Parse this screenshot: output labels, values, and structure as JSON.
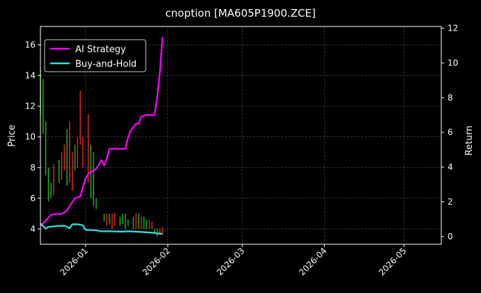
{
  "chart_data": {
    "type": "line",
    "title": "cnoption [MA605P1900.ZCE]",
    "ylabel_left": "Price",
    "ylabel_right": "Return",
    "ylim_left": [
      3.0,
      17.2
    ],
    "ylim_right": [
      -0.45,
      12.1
    ],
    "xlim": [
      "2025-12-15",
      "2026-05-15"
    ],
    "x_ticks": [
      "2026-01",
      "2026-02",
      "2026-03",
      "2026-04",
      "2026-05"
    ],
    "y_ticks_left": [
      "4",
      "6",
      "8",
      "10",
      "12",
      "14",
      "16"
    ],
    "y_ticks_right": [
      "0",
      "2",
      "4",
      "6",
      "8",
      "10",
      "12"
    ],
    "grid": true,
    "legend_position": "top-left",
    "colors": {
      "background": "#000000",
      "ai_strategy": "#ff00ff",
      "buy_and_hold": "#33dddd",
      "candle_up": "#ff2222",
      "candle_down": "#22bb22",
      "grid": "#555555"
    },
    "series": [
      {
        "name": "AI Strategy",
        "axis": "right",
        "x": [
          "2025-12-15",
          "2025-12-17",
          "2025-12-19",
          "2025-12-21",
          "2025-12-23",
          "2025-12-25",
          "2025-12-26",
          "2025-12-28",
          "2025-12-30",
          "2026-01-01",
          "2026-01-02",
          "2026-01-03",
          "2026-01-05",
          "2026-01-07",
          "2026-01-08",
          "2026-01-09",
          "2026-01-10",
          "2026-01-12",
          "2026-01-14",
          "2026-01-16",
          "2026-01-17",
          "2026-01-18",
          "2026-01-20",
          "2026-01-21",
          "2026-01-22",
          "2026-01-24",
          "2026-01-26",
          "2026-01-27",
          "2026-01-28",
          "2026-01-29",
          "2026-01-30"
        ],
        "values": [
          0.6,
          0.9,
          1.25,
          1.3,
          1.3,
          1.5,
          1.75,
          2.2,
          2.3,
          3.35,
          3.6,
          3.7,
          3.9,
          4.4,
          4.1,
          4.5,
          5.05,
          5.05,
          5.05,
          5.05,
          5.7,
          6.1,
          6.5,
          6.5,
          6.9,
          7.0,
          7.0,
          7.0,
          8.0,
          9.5,
          11.5
        ]
      },
      {
        "name": "Buy-and-Hold",
        "axis": "right",
        "x": [
          "2025-12-15",
          "2025-12-17",
          "2025-12-18",
          "2025-12-21",
          "2025-12-24",
          "2025-12-26",
          "2025-12-27",
          "2025-12-29",
          "2025-12-31",
          "2026-01-01",
          "2026-01-05",
          "2026-01-07",
          "2026-01-08",
          "2026-01-10",
          "2026-01-15",
          "2026-01-17",
          "2026-01-20",
          "2026-01-24",
          "2026-01-26",
          "2026-01-28",
          "2026-01-30"
        ],
        "values": [
          0.75,
          0.45,
          0.55,
          0.6,
          0.62,
          0.48,
          0.7,
          0.7,
          0.65,
          0.38,
          0.35,
          0.3,
          0.3,
          0.3,
          0.28,
          0.3,
          0.28,
          0.24,
          0.22,
          0.18,
          0.15
        ]
      }
    ],
    "candles": [
      {
        "x": "2025-12-15",
        "low": 11.5,
        "high": 14.4,
        "up": false
      },
      {
        "x": "2025-12-16",
        "low": 10.2,
        "high": 13.8,
        "up": false
      },
      {
        "x": "2025-12-17",
        "low": 7.5,
        "high": 11.0,
        "up": false
      },
      {
        "x": "2025-12-18",
        "low": 5.8,
        "high": 8.0,
        "up": false
      },
      {
        "x": "2025-12-19",
        "low": 6.0,
        "high": 7.0,
        "up": false
      },
      {
        "x": "2025-12-20",
        "low": 6.2,
        "high": 8.2,
        "up": true
      },
      {
        "x": "2025-12-22",
        "low": 7.0,
        "high": 8.5,
        "up": false
      },
      {
        "x": "2025-12-23",
        "low": 7.2,
        "high": 9.0,
        "up": true
      },
      {
        "x": "2025-12-24",
        "low": 7.8,
        "high": 9.5,
        "up": true
      },
      {
        "x": "2025-12-25",
        "low": 6.8,
        "high": 10.5,
        "up": false
      },
      {
        "x": "2025-12-26",
        "low": 7.0,
        "high": 11.0,
        "up": true
      },
      {
        "x": "2025-12-27",
        "low": 6.5,
        "high": 9.0,
        "up": true
      },
      {
        "x": "2025-12-28",
        "low": 7.8,
        "high": 9.5,
        "up": false
      },
      {
        "x": "2025-12-29",
        "low": 8.0,
        "high": 10.0,
        "up": true
      },
      {
        "x": "2025-12-30",
        "low": 9.5,
        "high": 13.0,
        "up": true
      },
      {
        "x": "2025-12-31",
        "low": 8.0,
        "high": 10.0,
        "up": true
      },
      {
        "x": "2026-01-02",
        "low": 7.0,
        "high": 11.5,
        "up": true
      },
      {
        "x": "2026-01-03",
        "low": 6.0,
        "high": 9.5,
        "up": false
      },
      {
        "x": "2026-01-04",
        "low": 5.5,
        "high": 9.0,
        "up": false
      },
      {
        "x": "2026-01-05",
        "low": 5.3,
        "high": 6.0,
        "up": false
      },
      {
        "x": "2026-01-08",
        "low": 4.5,
        "high": 5.0,
        "up": false
      },
      {
        "x": "2026-01-09",
        "low": 4.2,
        "high": 5.0,
        "up": true
      },
      {
        "x": "2026-01-10",
        "low": 4.3,
        "high": 5.0,
        "up": false
      },
      {
        "x": "2026-01-11",
        "low": 4.0,
        "high": 5.0,
        "up": true
      },
      {
        "x": "2026-01-12",
        "low": 4.2,
        "high": 5.0,
        "up": true
      },
      {
        "x": "2026-01-14",
        "low": 4.2,
        "high": 4.8,
        "up": false
      },
      {
        "x": "2026-01-15",
        "low": 4.3,
        "high": 5.0,
        "up": false
      },
      {
        "x": "2026-01-16",
        "low": 4.0,
        "high": 5.0,
        "up": false
      },
      {
        "x": "2026-01-17",
        "low": 4.2,
        "high": 4.6,
        "up": false
      },
      {
        "x": "2026-01-19",
        "low": 4.0,
        "high": 4.8,
        "up": false
      },
      {
        "x": "2026-01-20",
        "low": 4.0,
        "high": 5.0,
        "up": true
      },
      {
        "x": "2026-01-21",
        "low": 4.0,
        "high": 5.0,
        "up": false
      },
      {
        "x": "2026-01-22",
        "low": 4.0,
        "high": 4.8,
        "up": true
      },
      {
        "x": "2026-01-23",
        "low": 4.0,
        "high": 4.8,
        "up": false
      },
      {
        "x": "2026-01-24",
        "low": 4.0,
        "high": 4.6,
        "up": false
      },
      {
        "x": "2026-01-25",
        "low": 4.0,
        "high": 4.6,
        "up": true
      },
      {
        "x": "2026-01-26",
        "low": 4.0,
        "high": 4.5,
        "up": true
      },
      {
        "x": "2026-01-27",
        "low": 3.7,
        "high": 4.0,
        "up": false
      },
      {
        "x": "2026-01-28",
        "low": 3.5,
        "high": 4.0,
        "up": false
      },
      {
        "x": "2026-01-29",
        "low": 3.6,
        "high": 4.0,
        "up": true
      },
      {
        "x": "2026-01-30",
        "low": 3.6,
        "high": 4.1,
        "up": true
      }
    ]
  }
}
